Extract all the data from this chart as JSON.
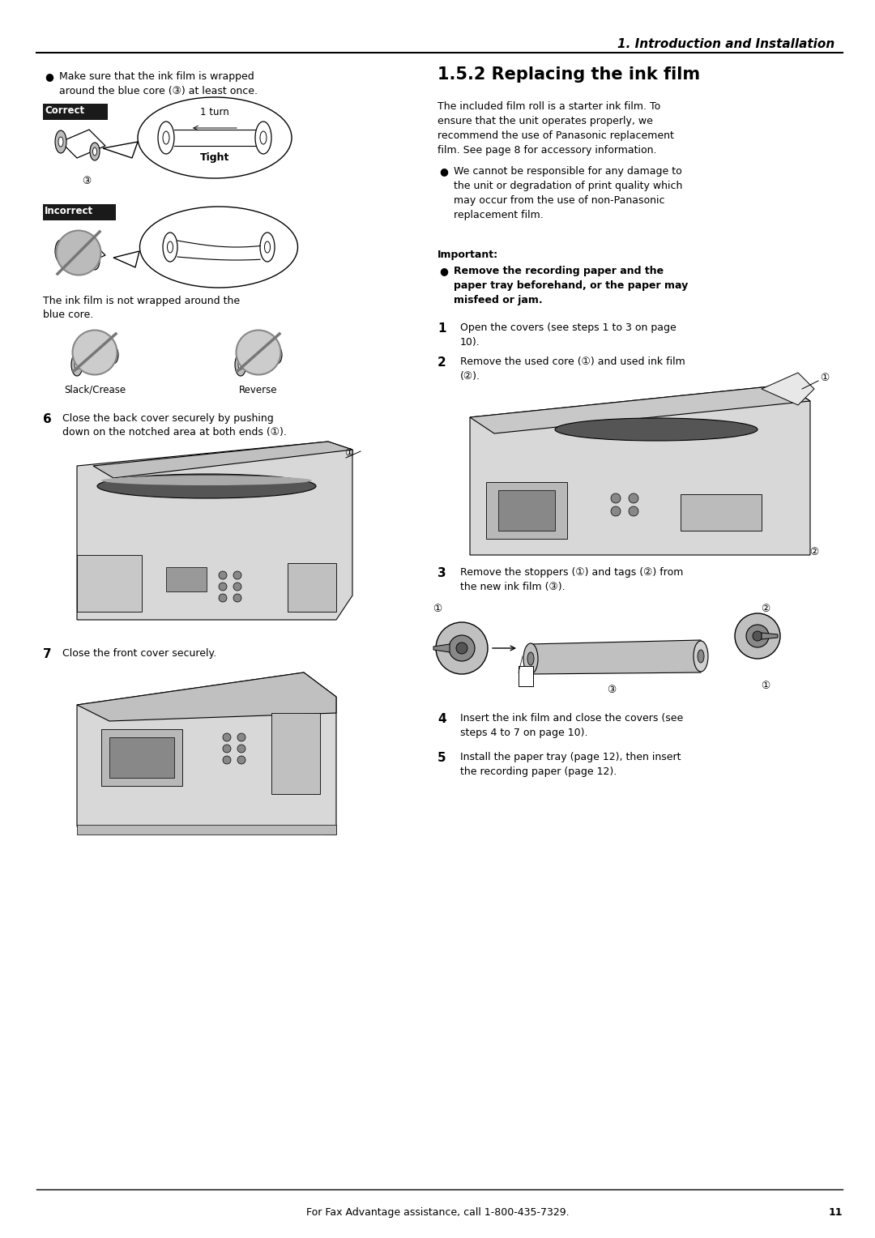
{
  "page_width": 10.8,
  "page_height": 15.28,
  "dpi": 100,
  "bg_color": "#ffffff",
  "header_title": "1. Introduction and Installation",
  "footer_text": "For Fax Advantage assistance, call 1-800-435-7329.",
  "footer_page": "11",
  "section_title": "1.5.2 Replacing the ink film",
  "intro_text_lines": [
    "The included film roll is a starter ink film. To",
    "ensure that the unit operates properly, we",
    "recommend the use of Panasonic replacement",
    "film. See page 8 for accessory information."
  ],
  "bullet_damage": [
    "We cannot be responsible for any damage to",
    "the unit or degradation of print quality which",
    "may occur from the use of non-Panasonic",
    "replacement film."
  ],
  "important_label": "Important:",
  "important_bullet": [
    "Remove the recording paper and the",
    "paper tray beforehand, or the paper may",
    "misfeed or jam."
  ],
  "step1": "Open the covers (see steps 1 to 3 on page",
  "step1b": "10).",
  "step2": "Remove the used core (①) and used ink film",
  "step2b": "(②).",
  "step3": "Remove the stoppers (①) and tags (②) from",
  "step3b": "the new ink film (③).",
  "step4": "Insert the ink film and close the covers (see",
  "step4b": "steps 4 to 7 on page 10).",
  "step5": "Install the paper tray (page 12), then insert",
  "step5b": "the recording paper (page 12).",
  "left_bullet1": "Make sure that the ink film is wrapped",
  "left_bullet2": "around the blue core (③) at least once.",
  "correct_label": "Correct",
  "incorrect_label": "Incorrect",
  "ink_film_desc1": "The ink film is not wrapped around the",
  "ink_film_desc2": "blue core.",
  "step6": "Close the back cover securely by pushing",
  "step6b": "down on the notched area at both ends (①).",
  "step7": "Close the front cover securely.",
  "slack_label": "Slack/Crease",
  "reverse_label": "Reverse",
  "gray_box_color": "#d0d0d0",
  "dark_color": "#333333",
  "label_box_color": "#1a1a1a",
  "circ_label_1": "①",
  "circ_label_2": "②",
  "circ_label_3": "③"
}
